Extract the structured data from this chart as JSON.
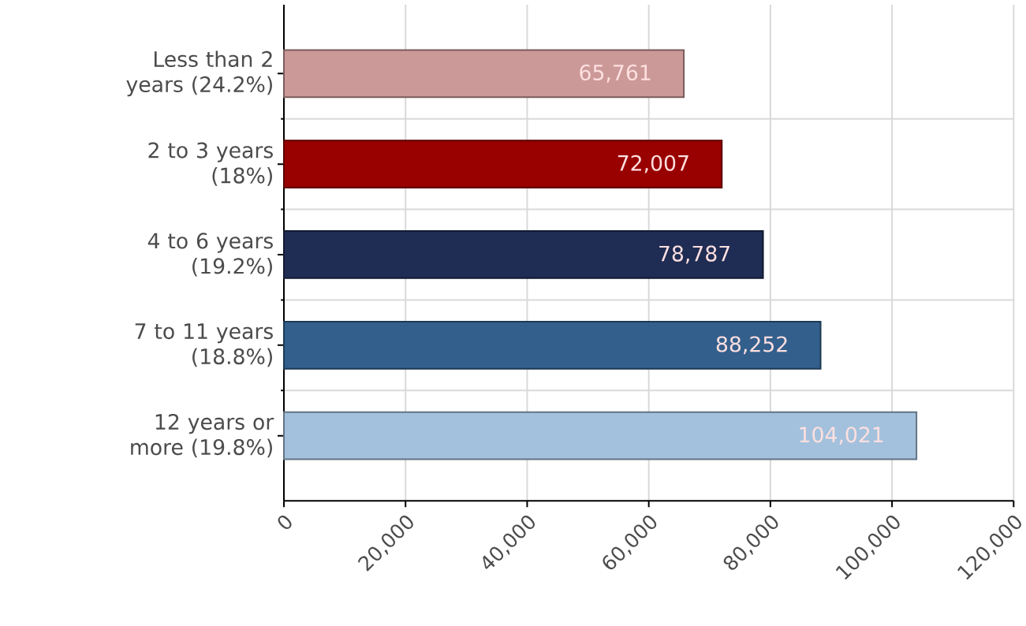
{
  "chart_data": {
    "type": "bar",
    "orientation": "horizontal",
    "categories": [
      "Less than 2 years (24.2%)",
      "2 to 3 years (18%)",
      "4 to 6 years (19.2%)",
      "7 to 11 years (18.8%)",
      "12 years or more (19.8%)"
    ],
    "values": [
      65761,
      72007,
      78787,
      88252,
      104021
    ],
    "colors": [
      "#cc9999",
      "#990000",
      "#1f2d54",
      "#335f8c",
      "#a3c1dc"
    ],
    "value_labels": [
      "65,761",
      "72,007",
      "78,787",
      "88,252",
      "104,021"
    ],
    "xlim": [
      0,
      120000
    ],
    "xticks": [
      0,
      {
        "value": 20000,
        "label": "20,000"
      },
      {
        "value": 40000,
        "label": "40,000"
      },
      {
        "value": 60000,
        "label": "60,000"
      },
      {
        "value": 80000,
        "label": "80,000"
      },
      {
        "value": 100000,
        "label": "100,000"
      },
      {
        "value": 120000,
        "label": "120,000"
      }
    ],
    "grid": true
  }
}
